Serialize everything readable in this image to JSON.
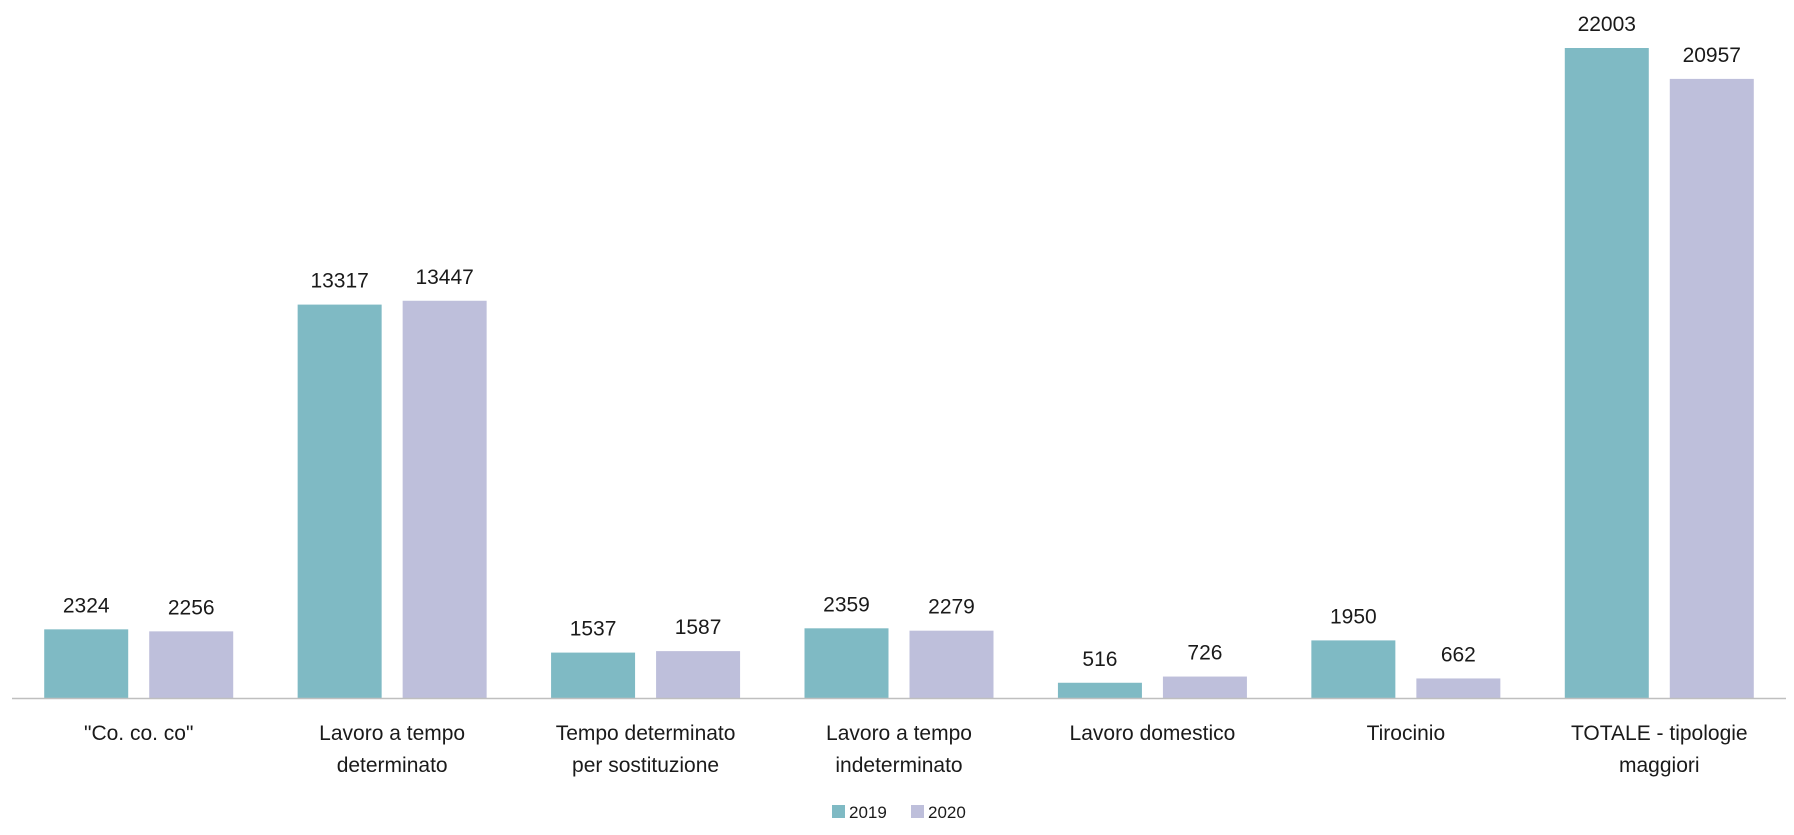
{
  "chart_data": {
    "type": "bar",
    "title": "",
    "xlabel": "",
    "ylabel": "",
    "categories": [
      [
        "\"Co. co. co\""
      ],
      [
        "Lavoro a tempo",
        "determinato"
      ],
      [
        "Tempo determinato",
        "per sostituzione"
      ],
      [
        "Lavoro a tempo",
        "indeterminato"
      ],
      [
        "Lavoro domestico"
      ],
      [
        "Tirocinio"
      ],
      [
        "TOTALE - tipologie",
        "maggiori"
      ]
    ],
    "series": [
      {
        "name": "2019",
        "color": "#7fbac4",
        "values": [
          2324,
          13317,
          1537,
          2359,
          516,
          1950,
          22003
        ]
      },
      {
        "name": "2020",
        "color": "#bebfdb",
        "values": [
          2256,
          13447,
          1587,
          2279,
          726,
          662,
          20957
        ]
      }
    ],
    "ylim": [
      0,
      22003
    ],
    "grid": false,
    "axis_line_color": "#bfbfbf",
    "data_labels": true,
    "legend_position": "bottom-center"
  }
}
